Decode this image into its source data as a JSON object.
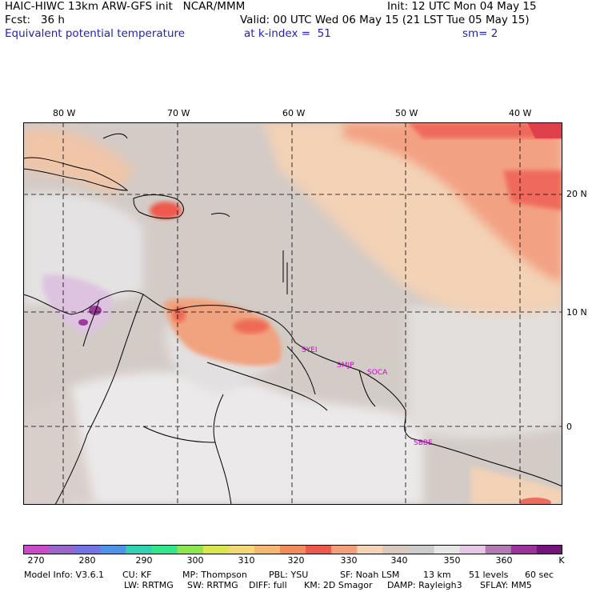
{
  "header": {
    "line1_left": "HAIC-HIWC 13km ARW-GFS init   NCAR/MMM",
    "line1_right": "Init: 12 UTC Mon 04 May 15",
    "line2_left": "Fcst:   36 h",
    "line2_right": "Valid: 00 UTC Wed 06 May 15 (21 LST Tue 05 May 15)",
    "line3_left": "Equivalent potential temperature",
    "line3_mid": "at k-index =  51",
    "line3_right": "sm= 2"
  },
  "map": {
    "lon_labels": [
      "80 W",
      "70 W",
      "60 W",
      "50 W",
      "40 W"
    ],
    "lat_labels": [
      "20 N",
      "10 N",
      "0"
    ],
    "stations": [
      "SYEI",
      "SMJP",
      "SOCA",
      "SBBE"
    ]
  },
  "colorbar": {
    "labels": [
      "270",
      "280",
      "290",
      "300",
      "310",
      "320",
      "330",
      "340",
      "350",
      "360",
      "K"
    ],
    "colors": [
      "#c84cc8",
      "#9966cc",
      "#7373e6",
      "#4d94e6",
      "#33d1b3",
      "#33e68c",
      "#8ce64d",
      "#d9e64d",
      "#f2d973",
      "#f5b870",
      "#f08c5a",
      "#ed5a4d",
      "#f2a07a",
      "#f5d3b5",
      "#d9c8bc",
      "#cccccc",
      "#e6e6e6",
      "#e6c8e6",
      "#b37ab3",
      "#993399",
      "#73147a"
    ]
  },
  "info": {
    "line1": [
      "Model Info: V3.6.1",
      "CU: KF",
      "MP: Thompson",
      "PBL: YSU",
      "SF: Noah LSM",
      "13 km",
      "51 levels",
      "60 sec"
    ],
    "line2": [
      "LW: RRTMG",
      "SW: RRTMG",
      "DIFF: full",
      "KM: 2D Smagor",
      "DAMP: Rayleigh3",
      "SFLAY: MM5"
    ]
  }
}
